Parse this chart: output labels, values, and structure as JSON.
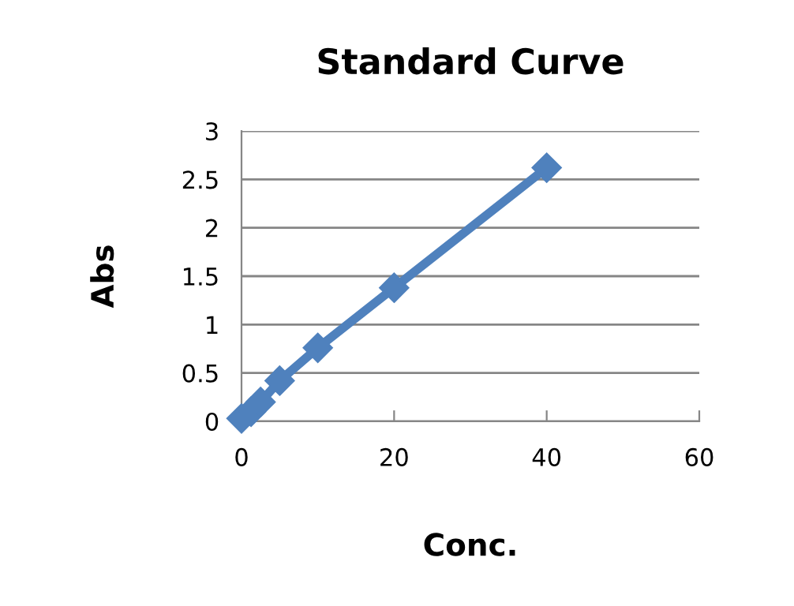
{
  "chart_data": {
    "type": "line",
    "title": "Standard Curve",
    "xlabel": "Conc.",
    "ylabel": "Abs",
    "x": [
      0,
      1.25,
      2.5,
      5,
      10,
      20,
      40
    ],
    "series": [
      {
        "color": "#4f81bd",
        "values": [
          0.03,
          0.1,
          0.2,
          0.42,
          0.76,
          1.38,
          2.62
        ]
      }
    ],
    "line_style": "solid",
    "marker": "diamond",
    "xlim": [
      0,
      60
    ],
    "xticks": [
      0,
      20,
      40,
      60
    ],
    "ylim": [
      0,
      3
    ],
    "yticks": [
      0,
      0.5,
      1,
      1.5,
      2,
      2.5,
      3
    ],
    "grid": "y",
    "legend": false
  }
}
